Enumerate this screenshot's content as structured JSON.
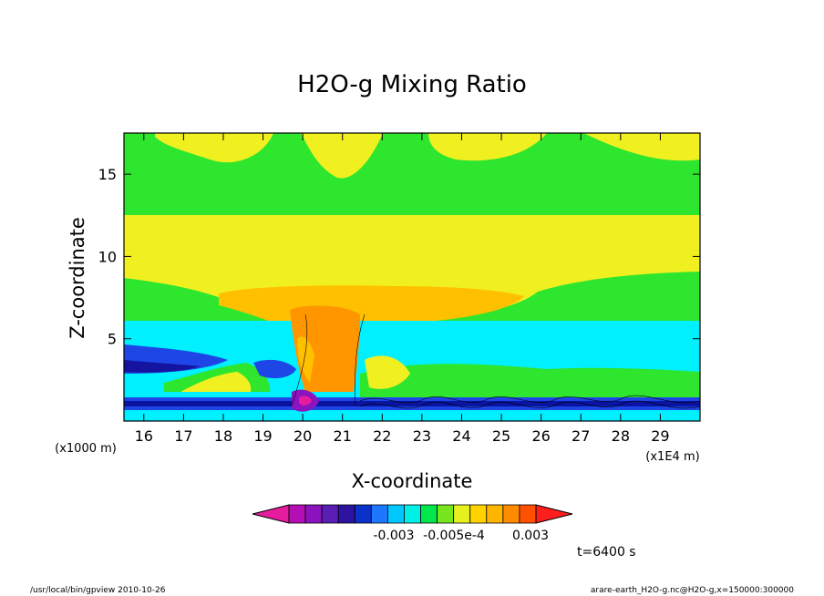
{
  "chart_data": {
    "type": "heatmap",
    "title": "H2O-g Mixing Ratio",
    "xlabel": "X-coordinate",
    "ylabel": "Z-coordinate",
    "x_unit": "(x1E4 m)",
    "y_unit": "(x1000 m)",
    "xlim": [
      15.5,
      30.0
    ],
    "ylim": [
      0.0,
      17.5
    ],
    "x_ticks": [
      16,
      17,
      18,
      19,
      20,
      21,
      22,
      23,
      24,
      25,
      26,
      27,
      28,
      29
    ],
    "y_ticks": [
      5,
      10,
      15
    ],
    "colorbar": {
      "colors": [
        "#e61c9e",
        "#b40fb4",
        "#8c14be",
        "#5a1eb4",
        "#2d14a0",
        "#0a32c8",
        "#1e78ff",
        "#00c8ff",
        "#00f0e6",
        "#00e64b",
        "#78e61e",
        "#e6f01e",
        "#ffd200",
        "#ffb400",
        "#ff8c00",
        "#ff5000",
        "#ff1e1e"
      ],
      "labels": [
        "-0.003",
        "-0.005e-4",
        "0.003"
      ]
    },
    "time_label": "t=6400 s"
  },
  "footer": {
    "left": "/usr/local/bin/gpview  2010-10-26",
    "right": "arare-earth_H2O-g.nc@H2O-g,x=150000:300000"
  }
}
